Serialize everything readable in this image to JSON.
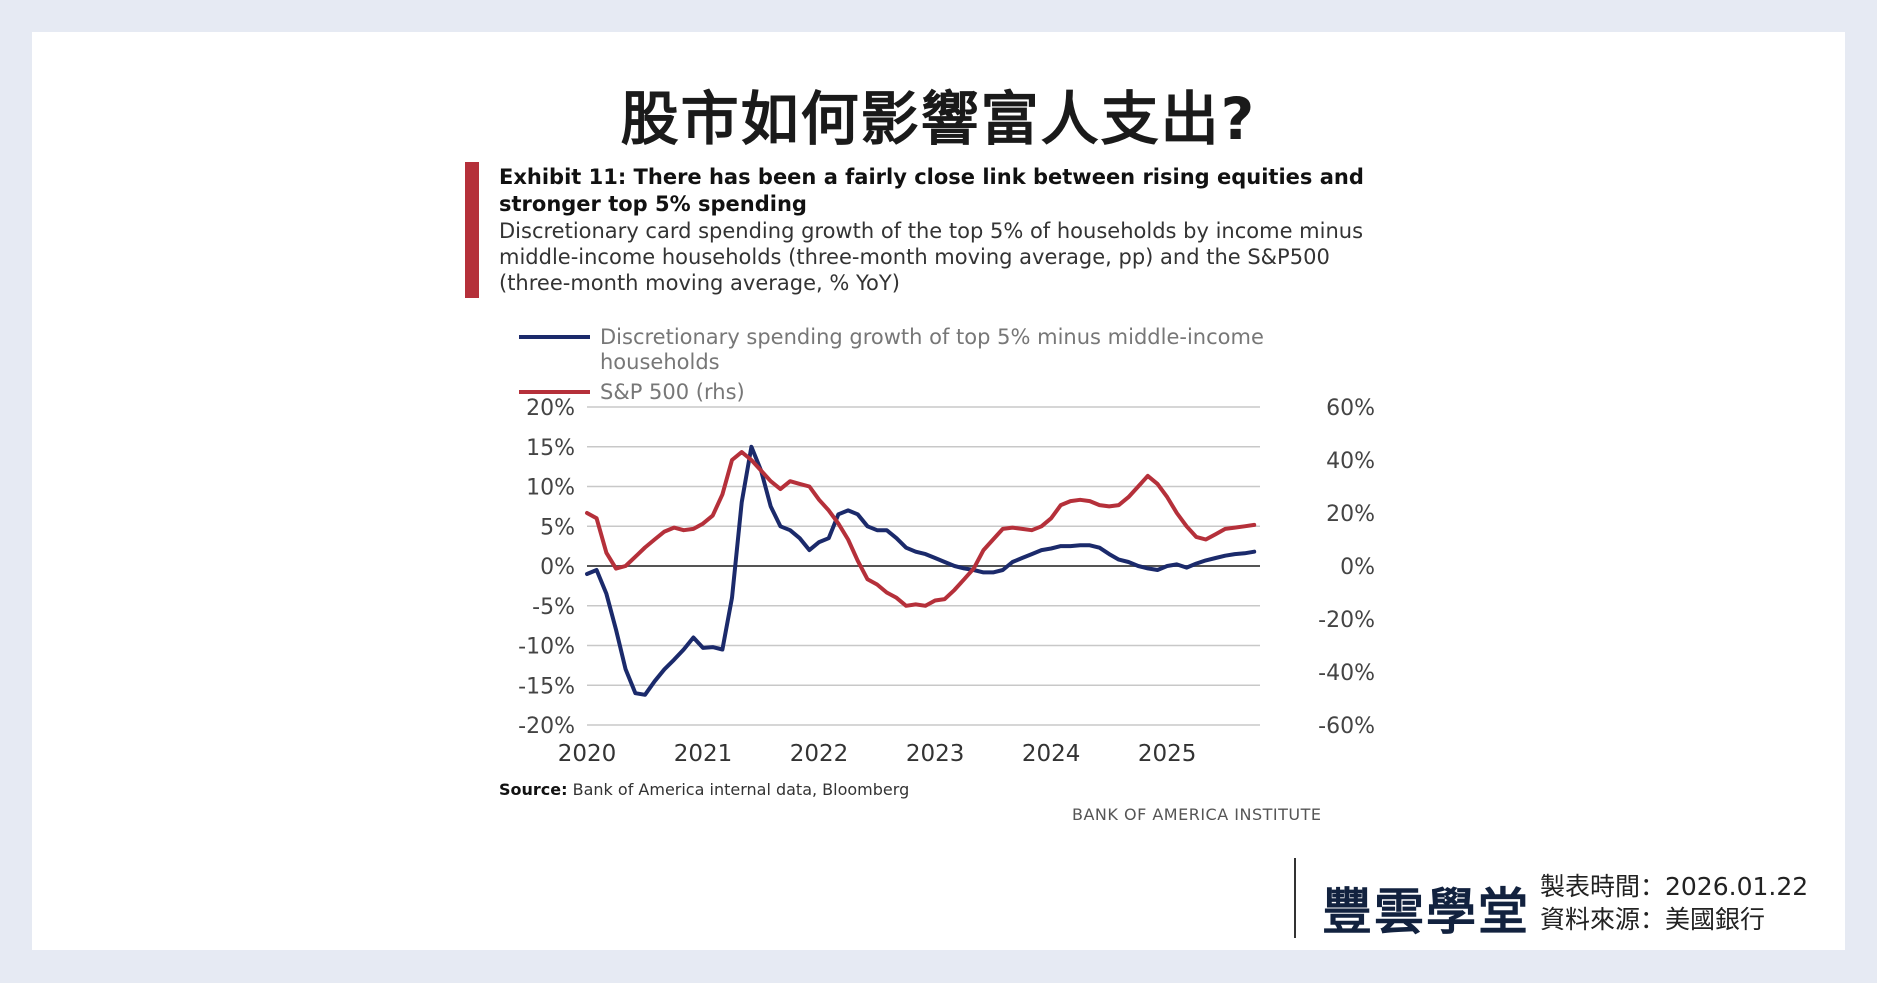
{
  "page": {
    "title": "股市如何影響富人支出?"
  },
  "exhibit": {
    "heading": "Exhibit 11: There has been a fairly close link between rising equities and stronger top 5% spending",
    "subtitle": "Discretionary card spending growth of the top 5% of households by income minus middle-income households (three-month moving average, pp) and the S&P500 (three-month moving average, % YoY)"
  },
  "footer": {
    "source_label": "Source:",
    "source_text": "Bank of America internal data, Bloomberg",
    "institute": "BANK OF AMERICA INSTITUTE"
  },
  "brand": {
    "logo_text": "豐雲學堂",
    "made_time": "製表時間：2026.01.22",
    "data_source": "資料來源：美國銀行"
  },
  "colors": {
    "series_spending": "#1b2a6b",
    "series_sp500": "#b5303a",
    "accent_bar": "#b5303a"
  },
  "chart_data": {
    "type": "line",
    "x_ticks": [
      "2020",
      "2021",
      "2022",
      "2023",
      "2024",
      "2025"
    ],
    "xlim": [
      2020,
      2025.8
    ],
    "ylim_left": [
      -20,
      20
    ],
    "ylim_right": [
      -60,
      60
    ],
    "y_ticks_left": [
      "20%",
      "15%",
      "10%",
      "5%",
      "0%",
      "-5%",
      "-10%",
      "-15%",
      "-20%"
    ],
    "y_ticks_right": [
      "60%",
      "40%",
      "20%",
      "0%",
      "-20%",
      "-40%",
      "-60%"
    ],
    "grid": true,
    "legend_position": "top-left",
    "series": [
      {
        "name": "Discretionary spending growth of top 5% minus middle-income households",
        "axis": "left",
        "x": [
          2020.0,
          2020.083,
          2020.167,
          2020.25,
          2020.333,
          2020.417,
          2020.5,
          2020.583,
          2020.667,
          2020.75,
          2020.833,
          2020.917,
          2021.0,
          2021.083,
          2021.167,
          2021.25,
          2021.333,
          2021.417,
          2021.5,
          2021.583,
          2021.667,
          2021.75,
          2021.833,
          2021.917,
          2022.0,
          2022.083,
          2022.167,
          2022.25,
          2022.333,
          2022.417,
          2022.5,
          2022.583,
          2022.667,
          2022.75,
          2022.833,
          2022.917,
          2023.0,
          2023.083,
          2023.167,
          2023.25,
          2023.333,
          2023.417,
          2023.5,
          2023.583,
          2023.667,
          2023.75,
          2023.833,
          2023.917,
          2024.0,
          2024.083,
          2024.167,
          2024.25,
          2024.333,
          2024.417,
          2024.5,
          2024.583,
          2024.667,
          2024.75,
          2024.833,
          2024.917,
          2025.0,
          2025.083,
          2025.167,
          2025.25,
          2025.333,
          2025.417,
          2025.5,
          2025.583,
          2025.667,
          2025.75
        ],
        "values": [
          -1,
          -0.5,
          -3.5,
          -8,
          -13,
          -16,
          -16.2,
          -14.5,
          -13,
          -11.8,
          -10.5,
          -9,
          -10.3,
          -10.2,
          -10.5,
          -4,
          8,
          15,
          12,
          7.5,
          5,
          4.5,
          3.5,
          2,
          3,
          3.5,
          6.5,
          7,
          6.5,
          5,
          4.5,
          4.5,
          3.5,
          2.3,
          1.8,
          1.5,
          1,
          0.5,
          0,
          -0.3,
          -0.5,
          -0.8,
          -0.8,
          -0.5,
          0.5,
          1,
          1.5,
          2,
          2.2,
          2.5,
          2.5,
          2.6,
          2.6,
          2.3,
          1.5,
          0.8,
          0.5,
          0,
          -0.3,
          -0.5,
          0,
          0.2,
          -0.2,
          0.3,
          0.7,
          1.0,
          1.3,
          1.5,
          1.6,
          1.8
        ]
      },
      {
        "name": "S&P 500 (rhs)",
        "axis": "right",
        "x": [
          2020.0,
          2020.083,
          2020.167,
          2020.25,
          2020.333,
          2020.417,
          2020.5,
          2020.583,
          2020.667,
          2020.75,
          2020.833,
          2020.917,
          2021.0,
          2021.083,
          2021.167,
          2021.25,
          2021.333,
          2021.417,
          2021.5,
          2021.583,
          2021.667,
          2021.75,
          2021.833,
          2021.917,
          2022.0,
          2022.083,
          2022.167,
          2022.25,
          2022.333,
          2022.417,
          2022.5,
          2022.583,
          2022.667,
          2022.75,
          2022.833,
          2022.917,
          2023.0,
          2023.083,
          2023.167,
          2023.25,
          2023.333,
          2023.417,
          2023.5,
          2023.583,
          2023.667,
          2023.75,
          2023.833,
          2023.917,
          2024.0,
          2024.083,
          2024.167,
          2024.25,
          2024.333,
          2024.417,
          2024.5,
          2024.583,
          2024.667,
          2024.75,
          2024.833,
          2024.917,
          2025.0,
          2025.083,
          2025.167,
          2025.25,
          2025.333,
          2025.417,
          2025.5,
          2025.583,
          2025.667,
          2025.75
        ],
        "values": [
          20,
          18,
          5,
          -1,
          0,
          3.5,
          7,
          10,
          13,
          14.5,
          13.5,
          14,
          16,
          19,
          27,
          40,
          43,
          40,
          36,
          32,
          29,
          32,
          31,
          30,
          25,
          21,
          16,
          10,
          2,
          -5,
          -7,
          -10,
          -12,
          -15,
          -14.5,
          -15,
          -13,
          -12.5,
          -9,
          -5,
          -1,
          6,
          10,
          14,
          14.5,
          14,
          13.5,
          15,
          18,
          23,
          24.5,
          25,
          24.5,
          23,
          22.5,
          23,
          26,
          30,
          34,
          31,
          26,
          20,
          15,
          11,
          10,
          12,
          14,
          14.5,
          15,
          15.5
        ]
      }
    ]
  }
}
